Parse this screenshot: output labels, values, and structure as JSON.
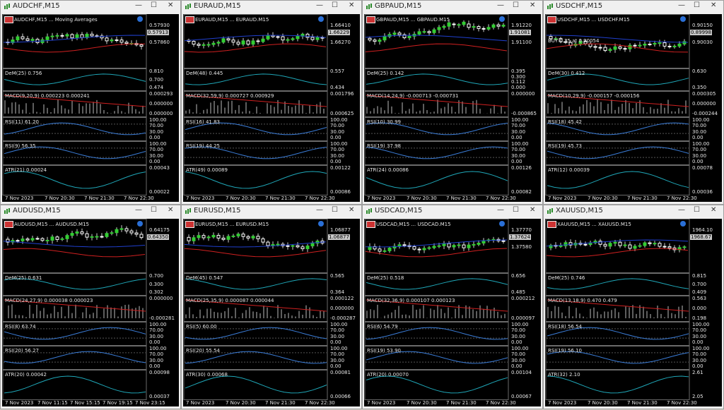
{
  "windows": [
    {
      "title": "AUDCHF,M15",
      "header": "AUDCHF,M15 ... Moving Averages",
      "price_tag": "0.57913",
      "price_labels": [
        "0.57930",
        "0.57860"
      ],
      "trade_label": "",
      "indicators": [
        {
          "label": "DeM(25) 0.756",
          "levels": [
            "0.810",
            "0.700",
            "0.474"
          ]
        },
        {
          "label": "MACD(9,20,9) 0.000223 0.000241",
          "levels": [
            "0.000293",
            "0.000000",
            "0.000000"
          ]
        },
        {
          "label": "RSI(11) 61.20",
          "levels": [
            "100.00",
            "70.00",
            "30.00",
            "0.00"
          ]
        },
        {
          "label": "RSI(9) 56.35",
          "levels": [
            "100.00",
            "70.00",
            "30.00",
            "0.00"
          ]
        },
        {
          "label": "ATR(21) 0.00024",
          "levels": [
            "0.00043",
            "0.00022"
          ]
        }
      ],
      "times": [
        "7 Nov 2023",
        "7 Nov 20:30",
        "7 Nov 21:30",
        "7 Nov 22:30"
      ]
    },
    {
      "title": "EURAUD,M15",
      "header": "EURAUD,M15 ... EURAUD.M15",
      "price_tag": "1.66229",
      "price_labels": [
        "1.66410",
        "1.66270"
      ],
      "trade_label": "",
      "indicators": [
        {
          "label": "DeM(48) 0.445",
          "levels": [
            "0.557",
            "0.434"
          ]
        },
        {
          "label": "MACD(32,59,9) 0.000727 0.000929",
          "levels": [
            "0.001796",
            "0.000625"
          ]
        },
        {
          "label": "RSI(16) 41.83",
          "levels": [
            "100.00",
            "70.00",
            "30.00",
            "0.00"
          ]
        },
        {
          "label": "RSI(19) 44.25",
          "levels": [
            "100.00",
            "70.00",
            "30.00",
            "0.00"
          ]
        },
        {
          "label": "ATR(49) 0.00089",
          "levels": [
            "0.00122",
            "0.00086"
          ]
        }
      ],
      "times": [
        "7 Nov 2023",
        "7 Nov 20:30",
        "7 Nov 21:30",
        "7 Nov 22:30"
      ]
    },
    {
      "title": "GBPAUD,M15",
      "header": "GBPAUD,M15 ... GBPAUD.M15",
      "price_tag": "1.91081",
      "price_labels": [
        "1.91220",
        "1.91100"
      ],
      "trade_label": "",
      "indicators": [
        {
          "label": "DeM(25) 0.142",
          "levels": [
            "0.395",
            "0.300",
            "0.112",
            "0.000"
          ]
        },
        {
          "label": "MACD(14,24,9) -0.000713 -0.000731",
          "levels": [
            "0.000000",
            "-0.000865"
          ]
        },
        {
          "label": "RSI(10) 30.99",
          "levels": [
            "100.00",
            "70.00",
            "30.00",
            "0.00"
          ]
        },
        {
          "label": "RSI(19) 37.98",
          "levels": [
            "100.00",
            "70.00",
            "30.00",
            "0.00"
          ]
        },
        {
          "label": "ATR(24) 0.00086",
          "levels": [
            "0.00126",
            "0.00082"
          ]
        }
      ],
      "times": [
        "7 Nov 2023",
        "7 Nov 20:30",
        "7 Nov 21:30",
        "7 Nov 22:30"
      ]
    },
    {
      "title": "USDCHF,M15",
      "header": "USDCHF,M15 ... USDCHF.M15",
      "price_tag": "0.89998",
      "price_labels": [
        "0.90150",
        "0.90030"
      ],
      "trade_label": "BUY 0.35 at 0.90054",
      "indicators": [
        {
          "label": "DeM(30) 0.412",
          "levels": [
            "0.630",
            "0.350"
          ]
        },
        {
          "label": "MACD(10,29,9) -0.000157 -0.000156",
          "levels": [
            "0.000305",
            "0.000000",
            "-0.000244"
          ]
        },
        {
          "label": "RSI(18) 45.42",
          "levels": [
            "100.00",
            "70.00",
            "30.00",
            "0.00"
          ]
        },
        {
          "label": "RSI(19) 45.73",
          "levels": [
            "100.00",
            "70.00",
            "30.00",
            "0.00"
          ]
        },
        {
          "label": "ATR(12) 0.00039",
          "levels": [
            "0.00078",
            "0.00036"
          ]
        }
      ],
      "times": [
        "7 Nov 2023",
        "7 Nov 20:30",
        "7 Nov 21:30",
        "7 Nov 22:30"
      ]
    },
    {
      "title": "AUDUSD,M15",
      "header": "AUDUSD,M15 ... AUDUSD.M15",
      "price_tag": "0.64350",
      "price_labels": [
        "0.64175"
      ],
      "trade_label": "",
      "indicators": [
        {
          "label": "DeM(25) 0.631",
          "levels": [
            "0.700",
            "0.300",
            "0.302"
          ]
        },
        {
          "label": "MACD(24,27,9) 0.000038 0.000023",
          "levels": [
            "0.000000",
            "-0.000281"
          ]
        },
        {
          "label": "RSI(8) 63.74",
          "levels": [
            "100.00",
            "70.00",
            "30.00",
            "0.00"
          ]
        },
        {
          "label": "RSI(20) 56.27",
          "levels": [
            "100.00",
            "70.00",
            "30.00",
            "0.00"
          ]
        },
        {
          "label": "ATR(20) 0.00042",
          "levels": [
            "0.00098",
            "0.00037"
          ]
        }
      ],
      "times": [
        "7 Nov 2023",
        "7 Nov 11:15",
        "7 Nov 15:15",
        "7 Nov 19:15",
        "7 Nov 23:15"
      ]
    },
    {
      "title": "EURUSD,M15",
      "header": "EURUSD,M15 ... EURUSD.M15",
      "price_tag": "1.06877",
      "price_labels": [
        "1.06877"
      ],
      "trade_label": "",
      "indicators": [
        {
          "label": "DeM(45) 0.547",
          "levels": [
            "0.565",
            "0.364"
          ]
        },
        {
          "label": "MACD(25,35,9) 0.000087 0.000044",
          "levels": [
            "0.000122",
            "0.000000",
            "-0.000287"
          ]
        },
        {
          "label": "RSI(5) 60.00",
          "levels": [
            "100.00",
            "70.00",
            "30.00",
            "0.00"
          ]
        },
        {
          "label": "RSI(20) 55.54",
          "levels": [
            "100.00",
            "70.00",
            "30.00",
            "0.00"
          ]
        },
        {
          "label": "ATR(30) 0.00068",
          "levels": [
            "0.00081",
            "0.00066"
          ]
        }
      ],
      "times": [
        "7 Nov 2023",
        "7 Nov 20:30",
        "7 Nov 21:30",
        "7 Nov 22:30"
      ]
    },
    {
      "title": "USDCAD,M15",
      "header": "USDCAD,M15 ... USDCAD.M15",
      "price_tag": "1.37624",
      "price_labels": [
        "1.37770",
        "1.37580"
      ],
      "trade_label": "",
      "indicators": [
        {
          "label": "DeM(25) 0.518",
          "levels": [
            "0.656",
            "0.485"
          ]
        },
        {
          "label": "MACD(32,36,9) 0.000107 0.000123",
          "levels": [
            "0.000212",
            "0.000097"
          ]
        },
        {
          "label": "RSI(6) 54.79",
          "levels": [
            "100.00",
            "70.00",
            "30.00",
            "0.00"
          ]
        },
        {
          "label": "RSI(19) 53.90",
          "levels": [
            "100.00",
            "70.00",
            "30.00",
            "0.00"
          ]
        },
        {
          "label": "ATR(20) 0.00070",
          "levels": [
            "0.00104",
            "0.00067"
          ]
        }
      ],
      "times": [
        "7 Nov 2023",
        "7 Nov 20:30",
        "7 Nov 21:30",
        "7 Nov 22:30"
      ]
    },
    {
      "title": "XAUUSD,M15",
      "header": "XAUUSD,M15 ... XAUUSD.M15",
      "price_tag": "1968.67",
      "price_labels": [
        "1964.10"
      ],
      "trade_label": "",
      "indicators": [
        {
          "label": "DeM(25) 0.746",
          "levels": [
            "0.815",
            "0.700",
            "0.409"
          ]
        },
        {
          "label": "MACD(13,18,9) 0.470 0.479",
          "levels": [
            "0.563",
            "0.000",
            "0.198"
          ]
        },
        {
          "label": "RSI(18) 56.54",
          "levels": [
            "100.00",
            "70.00",
            "30.00",
            "0.00"
          ]
        },
        {
          "label": "RSI(19) 56.10",
          "levels": [
            "100.00",
            "70.00",
            "30.00",
            "0.00"
          ]
        },
        {
          "label": "ATR(32) 2.10",
          "levels": [
            "2.61",
            "2.05"
          ]
        }
      ],
      "times": [
        "7 Nov 2023",
        "7 Nov 20:30",
        "7 Nov 21:30",
        "7 Nov 22:30"
      ]
    }
  ],
  "colors": {
    "chart_bg": "#000000",
    "bull": "#32cd32",
    "bear": "#ffffff",
    "ma_red": "#d02020",
    "ma_blue": "#2040d0",
    "indicator_line": "#1fa7b8",
    "rsi_line": "#3b7dd8",
    "grid": "#808080"
  },
  "icons": {
    "window": "chart-window-icon",
    "minimize": "minimize-icon",
    "maximize": "maximize-icon",
    "close": "close-icon"
  }
}
